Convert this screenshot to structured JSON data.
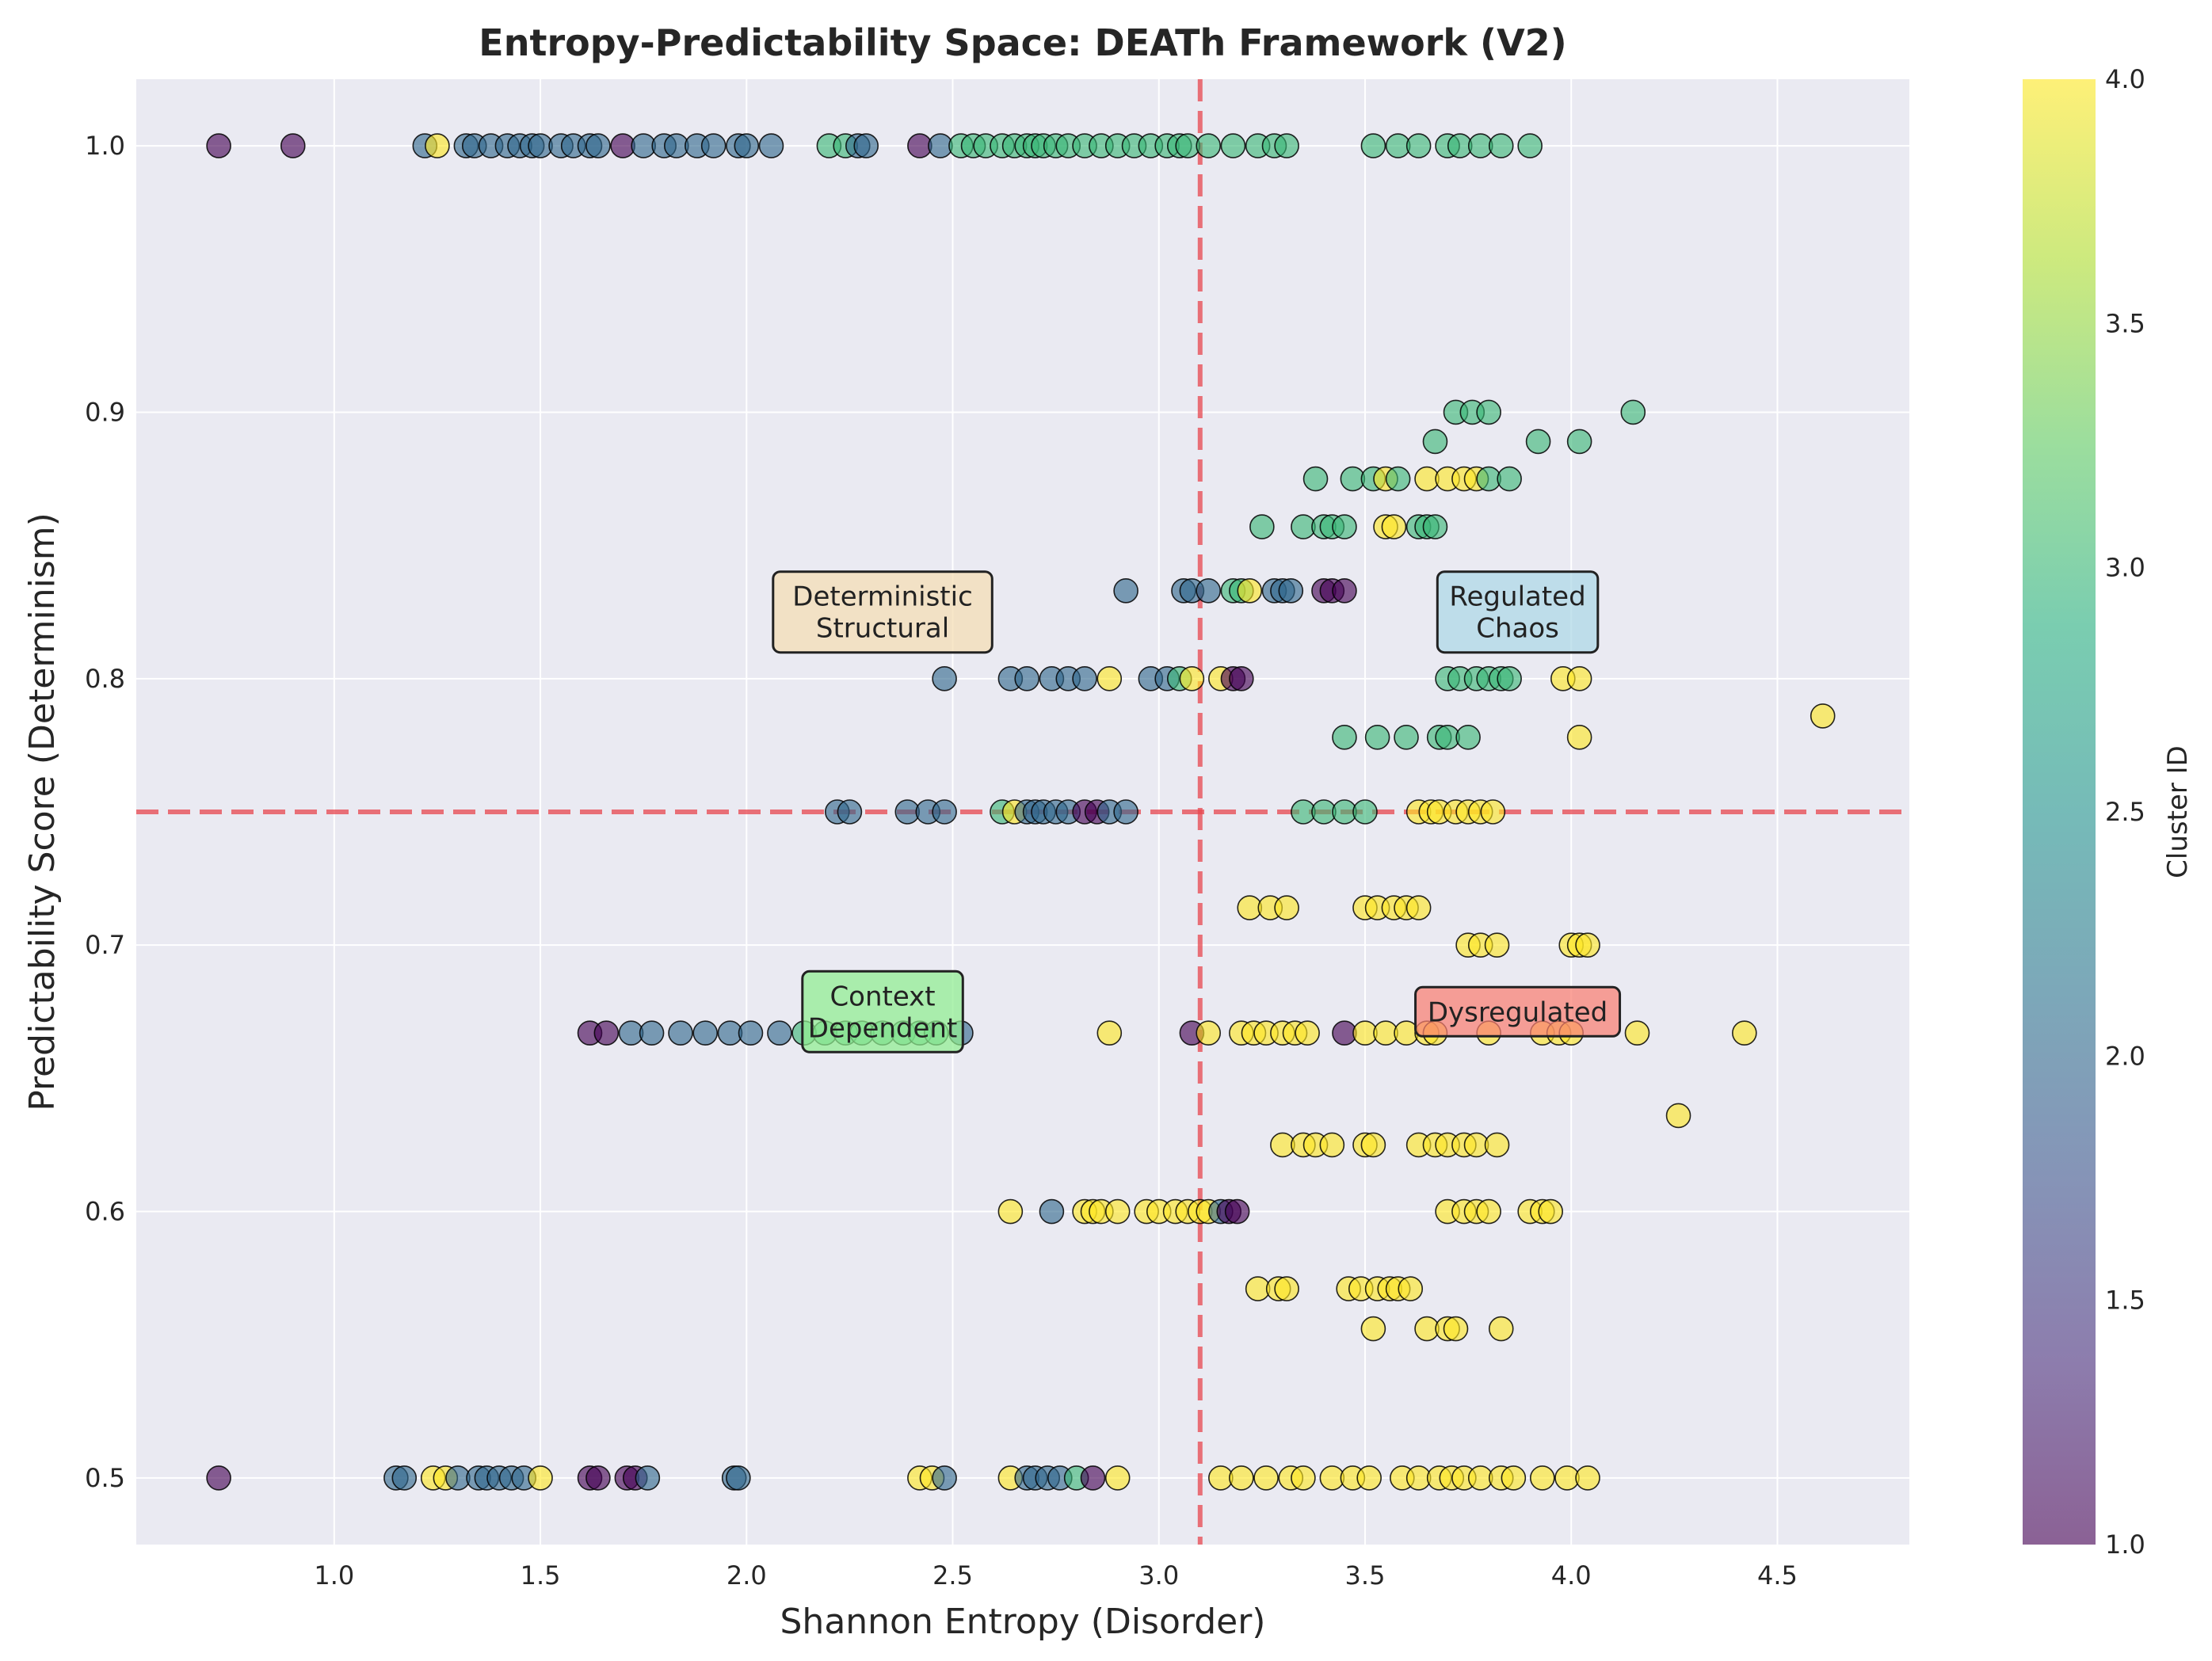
{
  "chart_data": {
    "type": "scatter",
    "title": "Entropy-Predictability Space: DEATh Framework (V2)",
    "xlabel": "Shannon Entropy (Disorder)",
    "ylabel": "Predictability Score (Determinism)",
    "xlim": [
      0.52,
      4.82
    ],
    "ylim": [
      0.475,
      1.025
    ],
    "xticks": [
      1.0,
      1.5,
      2.0,
      2.5,
      3.0,
      3.5,
      4.0,
      4.5
    ],
    "xtick_labels": [
      "1.0",
      "1.5",
      "2.0",
      "2.5",
      "3.0",
      "3.5",
      "4.0",
      "4.5"
    ],
    "yticks": [
      0.5,
      0.6,
      0.7,
      0.8,
      0.9,
      1.0
    ],
    "ytick_labels": [
      "0.5",
      "0.6",
      "0.7",
      "0.8",
      "0.9",
      "1.0"
    ],
    "grid": true,
    "colorbar": {
      "label": "Cluster ID",
      "range": [
        1.0,
        4.0
      ],
      "ticks": [
        1.0,
        1.5,
        2.0,
        2.5,
        3.0,
        3.5,
        4.0
      ],
      "tick_labels": [
        "1.0",
        "1.5",
        "2.0",
        "2.5",
        "3.0",
        "3.5",
        "4.0"
      ],
      "colormap": "viridis"
    },
    "reference_lines": [
      {
        "orientation": "vertical",
        "value": 3.1,
        "color": "#e8464e",
        "style": "dashed"
      },
      {
        "orientation": "horizontal",
        "value": 0.75,
        "color": "#e8464e",
        "style": "dashed"
      }
    ],
    "quadrant_labels": [
      {
        "text": "Deterministic\nStructural",
        "x": 2.33,
        "y": 0.825,
        "color": "#f5deb3"
      },
      {
        "text": "Regulated\nChaos",
        "x": 3.87,
        "y": 0.825,
        "color": "#add8e6"
      },
      {
        "text": "Context\nDependent",
        "x": 2.33,
        "y": 0.675,
        "color": "#90ee90"
      },
      {
        "text": "Dysregulated",
        "x": 3.87,
        "y": 0.675,
        "color": "#fa8072"
      }
    ],
    "points": [
      [
        0.72,
        1.0,
        1
      ],
      [
        0.9,
        1.0,
        1
      ],
      [
        1.22,
        1.0,
        2
      ],
      [
        1.25,
        1.0,
        4
      ],
      [
        1.32,
        1.0,
        2
      ],
      [
        1.34,
        1.0,
        2
      ],
      [
        1.38,
        1.0,
        2
      ],
      [
        1.42,
        1.0,
        2
      ],
      [
        1.45,
        1.0,
        2
      ],
      [
        1.48,
        1.0,
        2
      ],
      [
        1.5,
        1.0,
        2
      ],
      [
        1.55,
        1.0,
        2
      ],
      [
        1.58,
        1.0,
        2
      ],
      [
        1.62,
        1.0,
        2
      ],
      [
        1.64,
        1.0,
        2
      ],
      [
        1.7,
        1.0,
        1
      ],
      [
        1.75,
        1.0,
        2
      ],
      [
        1.8,
        1.0,
        2
      ],
      [
        1.83,
        1.0,
        2
      ],
      [
        1.88,
        1.0,
        2
      ],
      [
        1.92,
        1.0,
        2
      ],
      [
        1.98,
        1.0,
        2
      ],
      [
        2.0,
        1.0,
        2
      ],
      [
        2.06,
        1.0,
        2
      ],
      [
        2.2,
        1.0,
        3
      ],
      [
        2.24,
        1.0,
        3
      ],
      [
        2.27,
        1.0,
        2
      ],
      [
        2.29,
        1.0,
        2
      ],
      [
        2.42,
        1.0,
        1
      ],
      [
        2.47,
        1.0,
        2
      ],
      [
        2.52,
        1.0,
        3
      ],
      [
        2.55,
        1.0,
        3
      ],
      [
        2.58,
        1.0,
        3
      ],
      [
        2.62,
        1.0,
        3
      ],
      [
        2.65,
        1.0,
        3
      ],
      [
        2.68,
        1.0,
        3
      ],
      [
        2.7,
        1.0,
        3
      ],
      [
        2.72,
        1.0,
        3
      ],
      [
        2.75,
        1.0,
        3
      ],
      [
        2.78,
        1.0,
        3
      ],
      [
        2.82,
        1.0,
        3
      ],
      [
        2.86,
        1.0,
        3
      ],
      [
        2.9,
        1.0,
        3
      ],
      [
        2.94,
        1.0,
        3
      ],
      [
        2.98,
        1.0,
        3
      ],
      [
        3.02,
        1.0,
        3
      ],
      [
        3.05,
        1.0,
        3
      ],
      [
        3.07,
        1.0,
        3
      ],
      [
        3.12,
        1.0,
        3
      ],
      [
        3.18,
        1.0,
        3
      ],
      [
        3.24,
        1.0,
        3
      ],
      [
        3.28,
        1.0,
        3
      ],
      [
        3.31,
        1.0,
        3
      ],
      [
        3.52,
        1.0,
        3
      ],
      [
        3.58,
        1.0,
        3
      ],
      [
        3.63,
        1.0,
        3
      ],
      [
        3.7,
        1.0,
        3
      ],
      [
        3.73,
        1.0,
        3
      ],
      [
        3.78,
        1.0,
        3
      ],
      [
        3.83,
        1.0,
        3
      ],
      [
        3.9,
        1.0,
        3
      ],
      [
        3.72,
        0.9,
        3
      ],
      [
        3.76,
        0.9,
        3
      ],
      [
        3.8,
        0.9,
        3
      ],
      [
        4.15,
        0.9,
        3
      ],
      [
        3.92,
        0.889,
        3
      ],
      [
        4.02,
        0.889,
        3
      ],
      [
        3.67,
        0.889,
        3
      ],
      [
        3.38,
        0.875,
        3
      ],
      [
        3.47,
        0.875,
        3
      ],
      [
        3.52,
        0.875,
        3
      ],
      [
        3.55,
        0.875,
        4
      ],
      [
        3.58,
        0.875,
        3
      ],
      [
        3.65,
        0.875,
        4
      ],
      [
        3.7,
        0.875,
        4
      ],
      [
        3.74,
        0.875,
        4
      ],
      [
        3.77,
        0.875,
        4
      ],
      [
        3.8,
        0.875,
        3
      ],
      [
        3.85,
        0.875,
        3
      ],
      [
        3.25,
        0.857,
        3
      ],
      [
        3.35,
        0.857,
        3
      ],
      [
        3.4,
        0.857,
        3
      ],
      [
        3.42,
        0.857,
        3
      ],
      [
        3.45,
        0.857,
        3
      ],
      [
        3.55,
        0.857,
        4
      ],
      [
        3.57,
        0.857,
        4
      ],
      [
        3.63,
        0.857,
        3
      ],
      [
        3.65,
        0.857,
        3
      ],
      [
        3.67,
        0.857,
        3
      ],
      [
        2.92,
        0.833,
        2
      ],
      [
        3.06,
        0.833,
        2
      ],
      [
        3.08,
        0.833,
        2
      ],
      [
        3.12,
        0.833,
        2
      ],
      [
        3.18,
        0.833,
        3
      ],
      [
        3.2,
        0.833,
        3
      ],
      [
        3.22,
        0.833,
        4
      ],
      [
        3.28,
        0.833,
        2
      ],
      [
        3.3,
        0.833,
        2
      ],
      [
        3.32,
        0.833,
        2
      ],
      [
        3.4,
        0.833,
        1
      ],
      [
        3.42,
        0.833,
        1
      ],
      [
        3.45,
        0.833,
        1
      ],
      [
        2.48,
        0.8,
        2
      ],
      [
        2.64,
        0.8,
        2
      ],
      [
        2.68,
        0.8,
        2
      ],
      [
        2.74,
        0.8,
        2
      ],
      [
        2.78,
        0.8,
        2
      ],
      [
        2.82,
        0.8,
        2
      ],
      [
        2.88,
        0.8,
        4
      ],
      [
        2.98,
        0.8,
        2
      ],
      [
        3.02,
        0.8,
        2
      ],
      [
        3.05,
        0.8,
        3
      ],
      [
        3.08,
        0.8,
        4
      ],
      [
        3.15,
        0.8,
        4
      ],
      [
        3.18,
        0.8,
        1
      ],
      [
        3.2,
        0.8,
        1
      ],
      [
        3.7,
        0.8,
        3
      ],
      [
        3.73,
        0.8,
        3
      ],
      [
        3.77,
        0.8,
        3
      ],
      [
        3.8,
        0.8,
        3
      ],
      [
        3.83,
        0.8,
        3
      ],
      [
        3.85,
        0.8,
        3
      ],
      [
        3.98,
        0.8,
        4
      ],
      [
        4.02,
        0.8,
        4
      ],
      [
        3.45,
        0.778,
        3
      ],
      [
        3.53,
        0.778,
        3
      ],
      [
        3.6,
        0.778,
        3
      ],
      [
        3.68,
        0.778,
        3
      ],
      [
        3.7,
        0.778,
        3
      ],
      [
        3.75,
        0.778,
        3
      ],
      [
        4.02,
        0.778,
        4
      ],
      [
        4.61,
        0.786,
        4
      ],
      [
        2.22,
        0.75,
        2
      ],
      [
        2.25,
        0.75,
        2
      ],
      [
        2.39,
        0.75,
        2
      ],
      [
        2.44,
        0.75,
        2
      ],
      [
        2.48,
        0.75,
        2
      ],
      [
        2.62,
        0.75,
        3
      ],
      [
        2.65,
        0.75,
        4
      ],
      [
        2.68,
        0.75,
        2
      ],
      [
        2.7,
        0.75,
        2
      ],
      [
        2.72,
        0.75,
        2
      ],
      [
        2.75,
        0.75,
        2
      ],
      [
        2.78,
        0.75,
        2
      ],
      [
        2.82,
        0.75,
        1
      ],
      [
        2.85,
        0.75,
        1
      ],
      [
        2.88,
        0.75,
        2
      ],
      [
        2.92,
        0.75,
        2
      ],
      [
        3.35,
        0.75,
        3
      ],
      [
        3.4,
        0.75,
        3
      ],
      [
        3.45,
        0.75,
        3
      ],
      [
        3.5,
        0.75,
        3
      ],
      [
        3.63,
        0.75,
        4
      ],
      [
        3.66,
        0.75,
        4
      ],
      [
        3.68,
        0.75,
        4
      ],
      [
        3.72,
        0.75,
        4
      ],
      [
        3.75,
        0.75,
        4
      ],
      [
        3.78,
        0.75,
        4
      ],
      [
        3.81,
        0.75,
        4
      ],
      [
        3.22,
        0.714,
        4
      ],
      [
        3.27,
        0.714,
        4
      ],
      [
        3.31,
        0.714,
        4
      ],
      [
        3.5,
        0.714,
        4
      ],
      [
        3.53,
        0.714,
        4
      ],
      [
        3.57,
        0.714,
        4
      ],
      [
        3.6,
        0.714,
        4
      ],
      [
        3.63,
        0.714,
        4
      ],
      [
        3.75,
        0.7,
        4
      ],
      [
        3.78,
        0.7,
        4
      ],
      [
        3.82,
        0.7,
        4
      ],
      [
        4.0,
        0.7,
        4
      ],
      [
        4.02,
        0.7,
        4
      ],
      [
        4.04,
        0.7,
        4
      ],
      [
        1.62,
        0.667,
        1
      ],
      [
        1.66,
        0.667,
        1
      ],
      [
        1.72,
        0.667,
        2
      ],
      [
        1.77,
        0.667,
        2
      ],
      [
        1.84,
        0.667,
        2
      ],
      [
        1.9,
        0.667,
        2
      ],
      [
        1.96,
        0.667,
        2
      ],
      [
        2.01,
        0.667,
        2
      ],
      [
        2.08,
        0.667,
        2
      ],
      [
        2.14,
        0.667,
        3
      ],
      [
        2.19,
        0.667,
        3
      ],
      [
        2.24,
        0.667,
        3
      ],
      [
        2.28,
        0.667,
        3
      ],
      [
        2.33,
        0.667,
        3
      ],
      [
        2.38,
        0.667,
        3
      ],
      [
        2.42,
        0.667,
        3
      ],
      [
        2.46,
        0.667,
        3
      ],
      [
        2.52,
        0.667,
        2
      ],
      [
        2.88,
        0.667,
        4
      ],
      [
        3.08,
        0.667,
        1
      ],
      [
        3.12,
        0.667,
        4
      ],
      [
        3.2,
        0.667,
        4
      ],
      [
        3.23,
        0.667,
        4
      ],
      [
        3.26,
        0.667,
        4
      ],
      [
        3.3,
        0.667,
        4
      ],
      [
        3.33,
        0.667,
        4
      ],
      [
        3.36,
        0.667,
        4
      ],
      [
        3.45,
        0.667,
        1
      ],
      [
        3.5,
        0.667,
        4
      ],
      [
        3.55,
        0.667,
        4
      ],
      [
        3.6,
        0.667,
        4
      ],
      [
        3.65,
        0.667,
        4
      ],
      [
        3.67,
        0.667,
        4
      ],
      [
        3.8,
        0.667,
        4
      ],
      [
        3.93,
        0.667,
        4
      ],
      [
        3.97,
        0.667,
        4
      ],
      [
        4.0,
        0.667,
        4
      ],
      [
        4.16,
        0.667,
        4
      ],
      [
        4.42,
        0.667,
        4
      ],
      [
        4.26,
        0.636,
        4
      ],
      [
        3.3,
        0.625,
        4
      ],
      [
        3.35,
        0.625,
        4
      ],
      [
        3.38,
        0.625,
        4
      ],
      [
        3.42,
        0.625,
        4
      ],
      [
        3.5,
        0.625,
        4
      ],
      [
        3.52,
        0.625,
        4
      ],
      [
        3.63,
        0.625,
        4
      ],
      [
        3.67,
        0.625,
        4
      ],
      [
        3.7,
        0.625,
        4
      ],
      [
        3.74,
        0.625,
        4
      ],
      [
        3.77,
        0.625,
        4
      ],
      [
        3.82,
        0.625,
        4
      ],
      [
        2.64,
        0.6,
        4
      ],
      [
        2.74,
        0.6,
        2
      ],
      [
        2.82,
        0.6,
        4
      ],
      [
        2.84,
        0.6,
        4
      ],
      [
        2.86,
        0.6,
        4
      ],
      [
        2.9,
        0.6,
        4
      ],
      [
        2.97,
        0.6,
        4
      ],
      [
        3.0,
        0.6,
        4
      ],
      [
        3.04,
        0.6,
        4
      ],
      [
        3.07,
        0.6,
        4
      ],
      [
        3.1,
        0.6,
        4
      ],
      [
        3.12,
        0.6,
        4
      ],
      [
        3.15,
        0.6,
        2
      ],
      [
        3.17,
        0.6,
        1
      ],
      [
        3.19,
        0.6,
        1
      ],
      [
        3.7,
        0.6,
        4
      ],
      [
        3.74,
        0.6,
        4
      ],
      [
        3.77,
        0.6,
        4
      ],
      [
        3.8,
        0.6,
        4
      ],
      [
        3.9,
        0.6,
        4
      ],
      [
        3.93,
        0.6,
        4
      ],
      [
        3.95,
        0.6,
        4
      ],
      [
        3.24,
        0.571,
        4
      ],
      [
        3.29,
        0.571,
        4
      ],
      [
        3.31,
        0.571,
        4
      ],
      [
        3.46,
        0.571,
        4
      ],
      [
        3.49,
        0.571,
        4
      ],
      [
        3.53,
        0.571,
        4
      ],
      [
        3.56,
        0.571,
        4
      ],
      [
        3.58,
        0.571,
        4
      ],
      [
        3.61,
        0.571,
        4
      ],
      [
        3.52,
        0.556,
        4
      ],
      [
        3.65,
        0.556,
        4
      ],
      [
        3.7,
        0.556,
        4
      ],
      [
        3.72,
        0.556,
        4
      ],
      [
        3.83,
        0.556,
        4
      ],
      [
        0.72,
        0.5,
        1
      ],
      [
        1.15,
        0.5,
        2
      ],
      [
        1.17,
        0.5,
        2
      ],
      [
        1.24,
        0.5,
        4
      ],
      [
        1.27,
        0.5,
        4
      ],
      [
        1.3,
        0.5,
        2
      ],
      [
        1.35,
        0.5,
        2
      ],
      [
        1.37,
        0.5,
        2
      ],
      [
        1.4,
        0.5,
        2
      ],
      [
        1.43,
        0.5,
        2
      ],
      [
        1.46,
        0.5,
        2
      ],
      [
        1.5,
        0.5,
        4
      ],
      [
        1.62,
        0.5,
        1
      ],
      [
        1.64,
        0.5,
        1
      ],
      [
        1.71,
        0.5,
        1
      ],
      [
        1.73,
        0.5,
        1
      ],
      [
        1.76,
        0.5,
        2
      ],
      [
        1.97,
        0.5,
        2
      ],
      [
        1.98,
        0.5,
        2
      ],
      [
        2.42,
        0.5,
        4
      ],
      [
        2.45,
        0.5,
        4
      ],
      [
        2.48,
        0.5,
        2
      ],
      [
        2.64,
        0.5,
        4
      ],
      [
        2.68,
        0.5,
        2
      ],
      [
        2.7,
        0.5,
        2
      ],
      [
        2.73,
        0.5,
        2
      ],
      [
        2.76,
        0.5,
        2
      ],
      [
        2.8,
        0.5,
        3
      ],
      [
        2.84,
        0.5,
        1
      ],
      [
        2.9,
        0.5,
        4
      ],
      [
        3.15,
        0.5,
        4
      ],
      [
        3.2,
        0.5,
        4
      ],
      [
        3.26,
        0.5,
        4
      ],
      [
        3.32,
        0.5,
        4
      ],
      [
        3.35,
        0.5,
        4
      ],
      [
        3.42,
        0.5,
        4
      ],
      [
        3.47,
        0.5,
        4
      ],
      [
        3.51,
        0.5,
        4
      ],
      [
        3.59,
        0.5,
        4
      ],
      [
        3.63,
        0.5,
        4
      ],
      [
        3.68,
        0.5,
        4
      ],
      [
        3.71,
        0.5,
        4
      ],
      [
        3.74,
        0.5,
        4
      ],
      [
        3.78,
        0.5,
        4
      ],
      [
        3.83,
        0.5,
        4
      ],
      [
        3.86,
        0.5,
        4
      ],
      [
        3.93,
        0.5,
        4
      ],
      [
        3.99,
        0.5,
        4
      ],
      [
        4.04,
        0.5,
        4
      ]
    ]
  }
}
